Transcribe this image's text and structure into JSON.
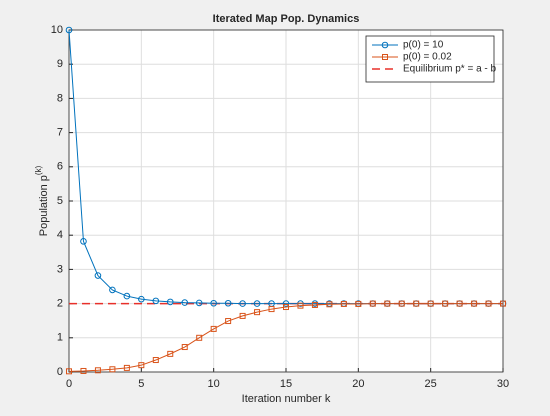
{
  "chart_data": {
    "type": "line",
    "title": "Iterated Map Pop. Dynamics",
    "xlabel": "Iteration number k",
    "ylabel": "Population p",
    "ylabel_superscript": "(k)",
    "x": [
      0,
      1,
      2,
      3,
      4,
      5,
      6,
      7,
      8,
      9,
      10,
      11,
      12,
      13,
      14,
      15,
      16,
      17,
      18,
      19,
      20,
      21,
      22,
      23,
      24,
      25,
      26,
      27,
      28,
      29,
      30
    ],
    "series": [
      {
        "name": "p(0) = 10",
        "color": "#0072bd",
        "marker": "circle",
        "values": [
          10,
          3.82,
          2.82,
          2.4,
          2.22,
          2.13,
          2.08,
          2.05,
          2.03,
          2.02,
          2.01,
          2.01,
          2,
          2,
          2,
          2,
          2,
          2,
          2,
          2,
          2,
          2,
          2,
          2,
          2,
          2,
          2,
          2,
          2,
          2,
          2
        ]
      },
      {
        "name": "p(0) = 0.02",
        "color": "#d95319",
        "marker": "square",
        "values": [
          0.02,
          0.03,
          0.05,
          0.08,
          0.12,
          0.2,
          0.35,
          0.53,
          0.73,
          1.0,
          1.26,
          1.49,
          1.64,
          1.75,
          1.84,
          1.9,
          1.94,
          1.96,
          1.98,
          1.99,
          1.99,
          2,
          2,
          2,
          2,
          2,
          2,
          2,
          2,
          2,
          2
        ]
      }
    ],
    "equilibrium": {
      "name": "Equilibrium p* = a - b",
      "value": 2,
      "color": "#e8302a"
    },
    "xlim": [
      0,
      30
    ],
    "xticks": [
      0,
      5,
      10,
      15,
      20,
      25,
      30
    ],
    "ylim": [
      0,
      10
    ],
    "yticks": [
      0,
      1,
      2,
      3,
      4,
      5,
      6,
      7,
      8,
      9,
      10
    ],
    "grid": true,
    "legend": "northeast"
  }
}
